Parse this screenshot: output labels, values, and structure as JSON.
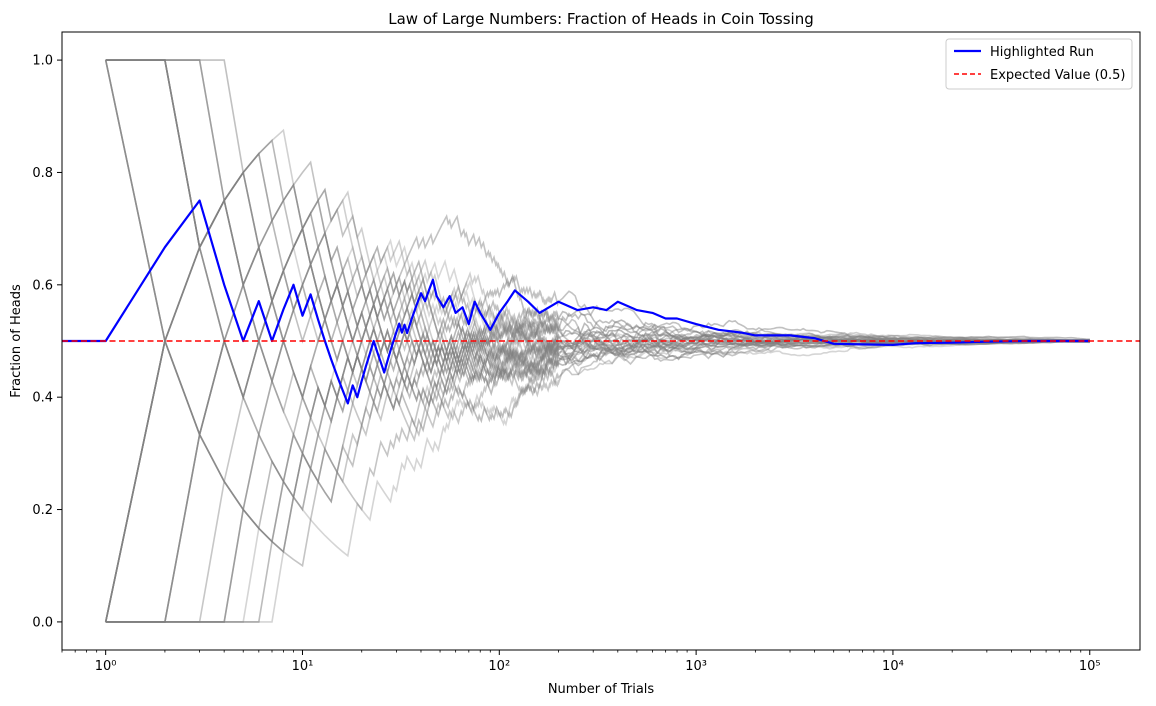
{
  "chart_data": {
    "type": "line",
    "title": "Law of Large Numbers: Fraction of Heads in Coin Tossing",
    "xlabel": "Number of Trials",
    "ylabel": "Fraction of Heads",
    "xscale": "log",
    "xlim": [
      0.6,
      180000
    ],
    "ylim": [
      -0.05,
      1.05
    ],
    "xticks": [
      {
        "value": 1,
        "label": "10⁰"
      },
      {
        "value": 10,
        "label": "10¹"
      },
      {
        "value": 100,
        "label": "10²"
      },
      {
        "value": 1000,
        "label": "10³"
      },
      {
        "value": 10000,
        "label": "10⁴"
      },
      {
        "value": 100000,
        "label": "10⁵"
      }
    ],
    "yticks": [
      0.0,
      0.2,
      0.4,
      0.6,
      0.8,
      1.0
    ],
    "ytick_labels": [
      "0.0",
      "0.2",
      "0.4",
      "0.6",
      "0.8",
      "1.0"
    ],
    "legend_position": "top-right",
    "grid": false,
    "colors": {
      "highlight": "#0000ff",
      "expected": "#ff0000",
      "background_runs": "#808080"
    },
    "series": [
      {
        "name": "Highlighted Run",
        "points": [
          [
            0.6,
            0.5
          ],
          [
            1,
            0.5
          ],
          [
            2,
            0.667
          ],
          [
            3,
            0.75
          ],
          [
            4,
            0.6
          ],
          [
            5,
            0.5
          ],
          [
            6,
            0.571
          ],
          [
            7,
            0.5
          ],
          [
            8,
            0.556
          ],
          [
            9,
            0.6
          ],
          [
            10,
            0.545
          ],
          [
            11,
            0.583
          ],
          [
            12,
            0.538
          ],
          [
            13,
            0.5
          ],
          [
            14,
            0.467
          ],
          [
            15,
            0.438
          ],
          [
            16,
            0.412
          ],
          [
            17,
            0.389
          ],
          [
            18,
            0.421
          ],
          [
            19,
            0.4
          ],
          [
            20,
            0.429
          ],
          [
            21,
            0.455
          ],
          [
            22,
            0.478
          ],
          [
            23,
            0.5
          ],
          [
            24,
            0.48
          ],
          [
            25,
            0.462
          ],
          [
            26,
            0.444
          ],
          [
            27,
            0.464
          ],
          [
            28,
            0.483
          ],
          [
            29,
            0.5
          ],
          [
            30,
            0.516
          ],
          [
            31,
            0.531
          ],
          [
            32,
            0.515
          ],
          [
            33,
            0.529
          ],
          [
            34,
            0.514
          ],
          [
            35,
            0.528
          ],
          [
            36,
            0.541
          ],
          [
            38,
            0.564
          ],
          [
            40,
            0.585
          ],
          [
            42,
            0.571
          ],
          [
            44,
            0.591
          ],
          [
            46,
            0.609
          ],
          [
            48,
            0.58
          ],
          [
            52,
            0.56
          ],
          [
            56,
            0.58
          ],
          [
            60,
            0.55
          ],
          [
            65,
            0.56
          ],
          [
            70,
            0.53
          ],
          [
            75,
            0.57
          ],
          [
            80,
            0.55
          ],
          [
            90,
            0.52
          ],
          [
            100,
            0.55
          ],
          [
            110,
            0.57
          ],
          [
            120,
            0.59
          ],
          [
            140,
            0.57
          ],
          [
            160,
            0.55
          ],
          [
            200,
            0.57
          ],
          [
            250,
            0.555
          ],
          [
            300,
            0.56
          ],
          [
            350,
            0.555
          ],
          [
            400,
            0.57
          ],
          [
            500,
            0.555
          ],
          [
            600,
            0.55
          ],
          [
            700,
            0.54
          ],
          [
            800,
            0.54
          ],
          [
            1000,
            0.53
          ],
          [
            1300,
            0.52
          ],
          [
            1700,
            0.515
          ],
          [
            2000,
            0.51
          ],
          [
            3000,
            0.51
          ],
          [
            4000,
            0.505
          ],
          [
            5000,
            0.495
          ],
          [
            7000,
            0.494
          ],
          [
            10000,
            0.493
          ],
          [
            13000,
            0.496
          ],
          [
            20000,
            0.497
          ],
          [
            30000,
            0.499
          ],
          [
            50000,
            0.5
          ],
          [
            100000,
            0.5
          ]
        ]
      },
      {
        "name": "Expected Value (0.5)",
        "points": [
          [
            0.6,
            0.5
          ],
          [
            180000,
            0.5
          ]
        ]
      }
    ]
  }
}
